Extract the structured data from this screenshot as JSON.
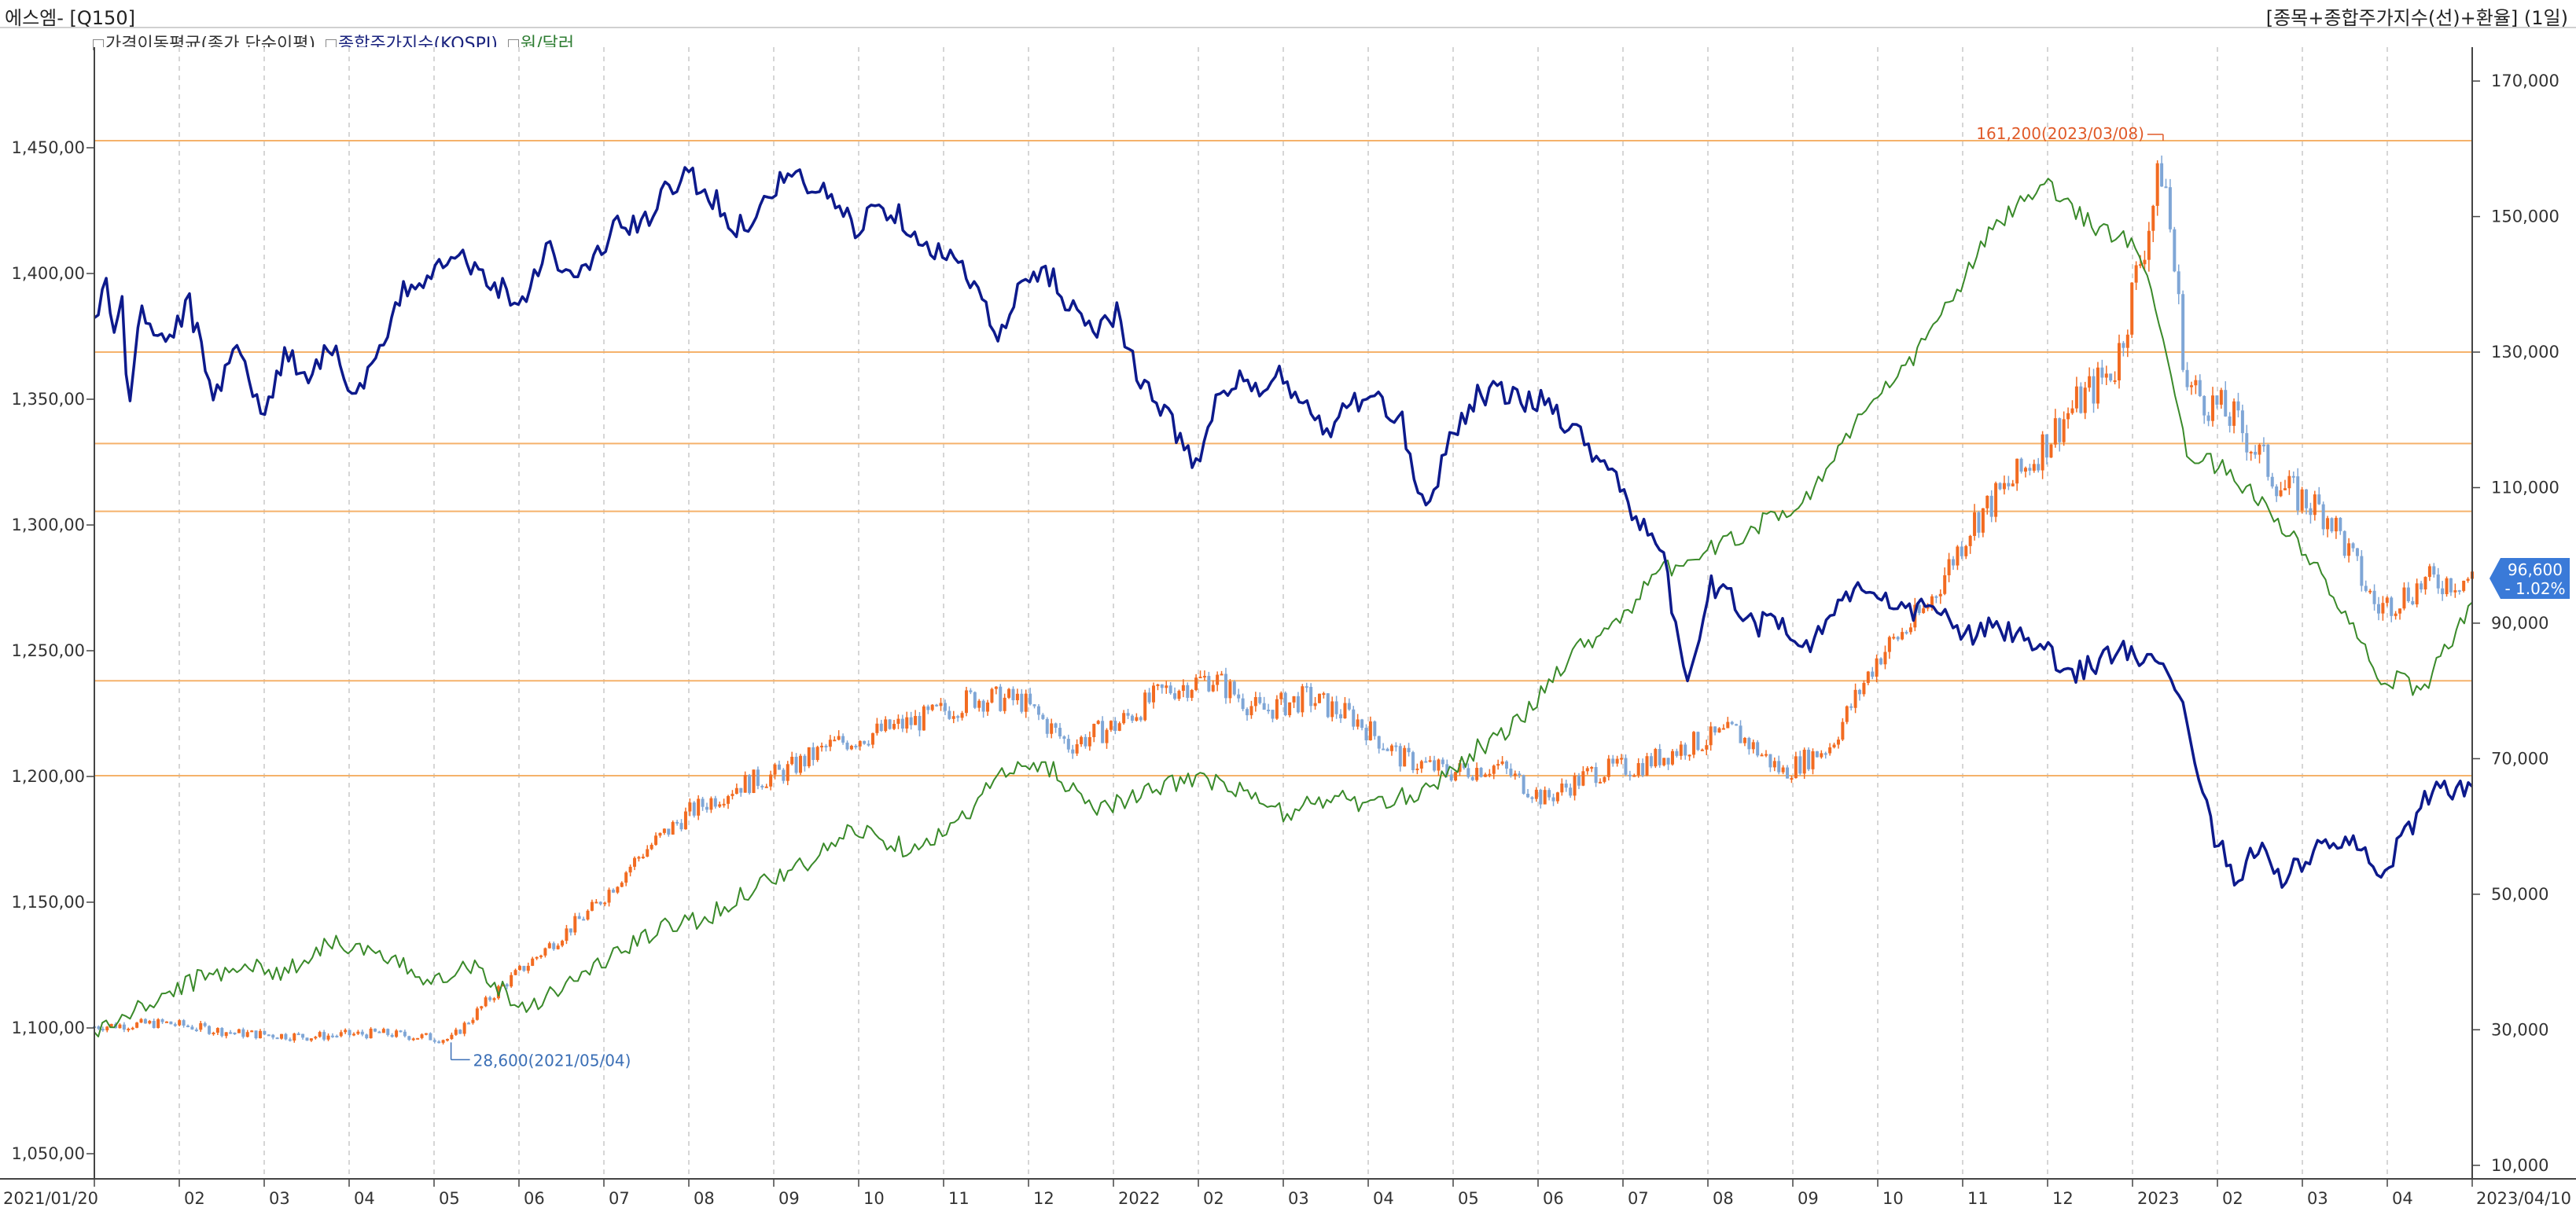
{
  "header": {
    "title_left": "에스엠- [Q150]",
    "title_right": "[종목+종합주가지수(선)+환율] (1일)"
  },
  "legend": [
    {
      "label": "가격이동평균(종가,단순이평)",
      "color": "#333333"
    },
    {
      "label": "종합주가지수(KOSPI)",
      "color": "#1a237e"
    },
    {
      "label": "원/달러",
      "color": "#2e7d32"
    }
  ],
  "colors": {
    "kospi": "#0d1a8c",
    "usdkrw": "#3a8a2a",
    "candle_up": "#f26b21",
    "candle_down": "#7fa6d6",
    "hline": "#f5b26b",
    "high_label": "#e05a28",
    "low_label": "#3b6fb6",
    "price_tag": "#3a7ad8"
  },
  "annotations": {
    "high": "161,200(2023/03/08)",
    "low": "28,600(2021/05/04)",
    "last_price": "96,600",
    "last_change": "- 1.02%"
  },
  "chart_data": {
    "type": "line",
    "x_range": [
      "2021/01/20",
      "2023/04/10"
    ],
    "x_tick_labels": [
      "2021/01/20",
      "02",
      "03",
      "04",
      "05",
      "06",
      "07",
      "08",
      "09",
      "10",
      "11",
      "12",
      "2022",
      "02",
      "03",
      "04",
      "05",
      "06",
      "07",
      "08",
      "09",
      "10",
      "11",
      "12",
      "2023",
      "02",
      "03",
      "04",
      "2023/04/10"
    ],
    "left_axis": {
      "label": "원/달러",
      "ticks": [
        "1,450,00",
        "1,400,00",
        "1,350,00",
        "1,300,00",
        "1,250,00",
        "1,200,00",
        "1,150,00",
        "1,100,00",
        "1,050,00"
      ],
      "range": [
        1040,
        1490
      ]
    },
    "right_axis": {
      "label": "에스엠",
      "ticks": [
        "170,000",
        "150,000",
        "130,000",
        "110,000",
        "90,000",
        "70,000",
        "50,000",
        "30,000",
        "10,000"
      ],
      "range": [
        8000,
        175000
      ]
    },
    "horizontal_lines": [
      161200,
      130000,
      116500,
      106500,
      81500,
      67500
    ],
    "series": [
      {
        "name": "종합주가지수(KOSPI)",
        "axis": "left",
        "points": [
          [
            0.0,
            1382
          ],
          [
            0.005,
            1395
          ],
          [
            0.008,
            1378
          ],
          [
            0.012,
            1390
          ],
          [
            0.014,
            1345
          ],
          [
            0.02,
            1385
          ],
          [
            0.03,
            1372
          ],
          [
            0.04,
            1388
          ],
          [
            0.05,
            1350
          ],
          [
            0.06,
            1375
          ],
          [
            0.07,
            1342
          ],
          [
            0.08,
            1368
          ],
          [
            0.09,
            1360
          ],
          [
            0.1,
            1372
          ],
          [
            0.11,
            1350
          ],
          [
            0.12,
            1368
          ],
          [
            0.13,
            1392
          ],
          [
            0.14,
            1400
          ],
          [
            0.15,
            1410
          ],
          [
            0.16,
            1402
          ],
          [
            0.17,
            1395
          ],
          [
            0.18,
            1388
          ],
          [
            0.19,
            1412
          ],
          [
            0.2,
            1398
          ],
          [
            0.21,
            1405
          ],
          [
            0.22,
            1420
          ],
          [
            0.23,
            1418
          ],
          [
            0.24,
            1432
          ],
          [
            0.25,
            1440
          ],
          [
            0.26,
            1430
          ],
          [
            0.27,
            1418
          ],
          [
            0.28,
            1425
          ],
          [
            0.29,
            1440
          ],
          [
            0.3,
            1435
          ],
          [
            0.31,
            1430
          ],
          [
            0.32,
            1418
          ],
          [
            0.33,
            1428
          ],
          [
            0.34,
            1422
          ],
          [
            0.35,
            1412
          ],
          [
            0.36,
            1405
          ],
          [
            0.37,
            1398
          ],
          [
            0.38,
            1372
          ],
          [
            0.39,
            1395
          ],
          [
            0.4,
            1402
          ],
          [
            0.41,
            1388
          ],
          [
            0.42,
            1378
          ],
          [
            0.43,
            1385
          ],
          [
            0.44,
            1355
          ],
          [
            0.45,
            1345
          ],
          [
            0.46,
            1330
          ],
          [
            0.465,
            1322
          ],
          [
            0.47,
            1345
          ],
          [
            0.48,
            1358
          ],
          [
            0.49,
            1352
          ],
          [
            0.5,
            1360
          ],
          [
            0.51,
            1345
          ],
          [
            0.52,
            1338
          ],
          [
            0.53,
            1350
          ],
          [
            0.54,
            1348
          ],
          [
            0.55,
            1340
          ],
          [
            0.56,
            1305
          ],
          [
            0.57,
            1335
          ],
          [
            0.58,
            1350
          ],
          [
            0.59,
            1355
          ],
          [
            0.6,
            1348
          ],
          [
            0.61,
            1350
          ],
          [
            0.62,
            1340
          ],
          [
            0.63,
            1330
          ],
          [
            0.64,
            1320
          ],
          [
            0.65,
            1300
          ],
          [
            0.66,
            1285
          ],
          [
            0.67,
            1238
          ],
          [
            0.68,
            1275
          ],
          [
            0.69,
            1270
          ],
          [
            0.7,
            1260
          ],
          [
            0.71,
            1262
          ],
          [
            0.72,
            1250
          ],
          [
            0.73,
            1265
          ],
          [
            0.74,
            1275
          ],
          [
            0.75,
            1270
          ],
          [
            0.76,
            1265
          ],
          [
            0.77,
            1268
          ],
          [
            0.78,
            1262
          ],
          [
            0.79,
            1255
          ],
          [
            0.8,
            1260
          ],
          [
            0.81,
            1255
          ],
          [
            0.82,
            1250
          ],
          [
            0.83,
            1240
          ],
          [
            0.84,
            1245
          ],
          [
            0.85,
            1250
          ],
          [
            0.86,
            1248
          ],
          [
            0.87,
            1240
          ],
          [
            0.88,
            1225
          ],
          [
            0.89,
            1180
          ],
          [
            0.9,
            1160
          ],
          [
            0.91,
            1172
          ],
          [
            0.92,
            1160
          ],
          [
            0.93,
            1165
          ],
          [
            0.94,
            1175
          ],
          [
            0.95,
            1172
          ],
          [
            0.96,
            1162
          ],
          [
            0.97,
            1172
          ],
          [
            0.98,
            1192
          ],
          [
            0.99,
            1195
          ],
          [
            1.0,
            1197
          ]
        ]
      },
      {
        "name": "원/달러",
        "axis": "left",
        "points": [
          [
            0.0,
            1098
          ],
          [
            0.02,
            1108
          ],
          [
            0.04,
            1118
          ],
          [
            0.06,
            1125
          ],
          [
            0.08,
            1122
          ],
          [
            0.1,
            1135
          ],
          [
            0.12,
            1128
          ],
          [
            0.14,
            1120
          ],
          [
            0.16,
            1125
          ],
          [
            0.18,
            1108
          ],
          [
            0.2,
            1118
          ],
          [
            0.22,
            1130
          ],
          [
            0.24,
            1140
          ],
          [
            0.26,
            1145
          ],
          [
            0.28,
            1158
          ],
          [
            0.3,
            1165
          ],
          [
            0.32,
            1180
          ],
          [
            0.34,
            1172
          ],
          [
            0.36,
            1178
          ],
          [
            0.38,
            1200
          ],
          [
            0.4,
            1205
          ],
          [
            0.42,
            1188
          ],
          [
            0.44,
            1192
          ],
          [
            0.46,
            1200
          ],
          [
            0.48,
            1195
          ],
          [
            0.5,
            1185
          ],
          [
            0.52,
            1192
          ],
          [
            0.54,
            1188
          ],
          [
            0.56,
            1195
          ],
          [
            0.58,
            1210
          ],
          [
            0.6,
            1222
          ],
          [
            0.62,
            1248
          ],
          [
            0.64,
            1262
          ],
          [
            0.66,
            1282
          ],
          [
            0.68,
            1290
          ],
          [
            0.7,
            1300
          ],
          [
            0.72,
            1310
          ],
          [
            0.74,
            1340
          ],
          [
            0.76,
            1360
          ],
          [
            0.78,
            1388
          ],
          [
            0.8,
            1420
          ],
          [
            0.82,
            1435
          ],
          [
            0.84,
            1420
          ],
          [
            0.86,
            1410
          ],
          [
            0.88,
            1330
          ],
          [
            0.9,
            1320
          ],
          [
            0.92,
            1300
          ],
          [
            0.94,
            1275
          ],
          [
            0.96,
            1240
          ],
          [
            0.98,
            1235
          ],
          [
            1.0,
            1270
          ]
        ]
      }
    ],
    "candles_close_axis": "right",
    "candles_close": [
      [
        0.0,
        30500
      ],
      [
        0.03,
        31000
      ],
      [
        0.06,
        29500
      ],
      [
        0.09,
        29000
      ],
      [
        0.12,
        29500
      ],
      [
        0.15,
        28600
      ],
      [
        0.17,
        36000
      ],
      [
        0.19,
        42000
      ],
      [
        0.21,
        48000
      ],
      [
        0.23,
        56000
      ],
      [
        0.25,
        62000
      ],
      [
        0.27,
        66000
      ],
      [
        0.29,
        68000
      ],
      [
        0.31,
        72000
      ],
      [
        0.33,
        74000
      ],
      [
        0.35,
        76000
      ],
      [
        0.37,
        79000
      ],
      [
        0.39,
        78500
      ],
      [
        0.41,
        72000
      ],
      [
        0.43,
        75000
      ],
      [
        0.45,
        80000
      ],
      [
        0.47,
        82000
      ],
      [
        0.49,
        77000
      ],
      [
        0.51,
        79000
      ],
      [
        0.53,
        76000
      ],
      [
        0.55,
        70000
      ],
      [
        0.57,
        68000
      ],
      [
        0.59,
        69000
      ],
      [
        0.61,
        64000
      ],
      [
        0.63,
        68000
      ],
      [
        0.65,
        69000
      ],
      [
        0.67,
        72000
      ],
      [
        0.69,
        74000
      ],
      [
        0.71,
        68000
      ],
      [
        0.73,
        72000
      ],
      [
        0.75,
        85000
      ],
      [
        0.77,
        92000
      ],
      [
        0.79,
        105000
      ],
      [
        0.81,
        112000
      ],
      [
        0.83,
        121000
      ],
      [
        0.85,
        128000
      ],
      [
        0.87,
        158000
      ],
      [
        0.88,
        125000
      ],
      [
        0.9,
        120000
      ],
      [
        0.92,
        110000
      ],
      [
        0.94,
        106000
      ],
      [
        0.96,
        92000
      ],
      [
        0.98,
        96000
      ],
      [
        1.0,
        96600
      ]
    ]
  }
}
